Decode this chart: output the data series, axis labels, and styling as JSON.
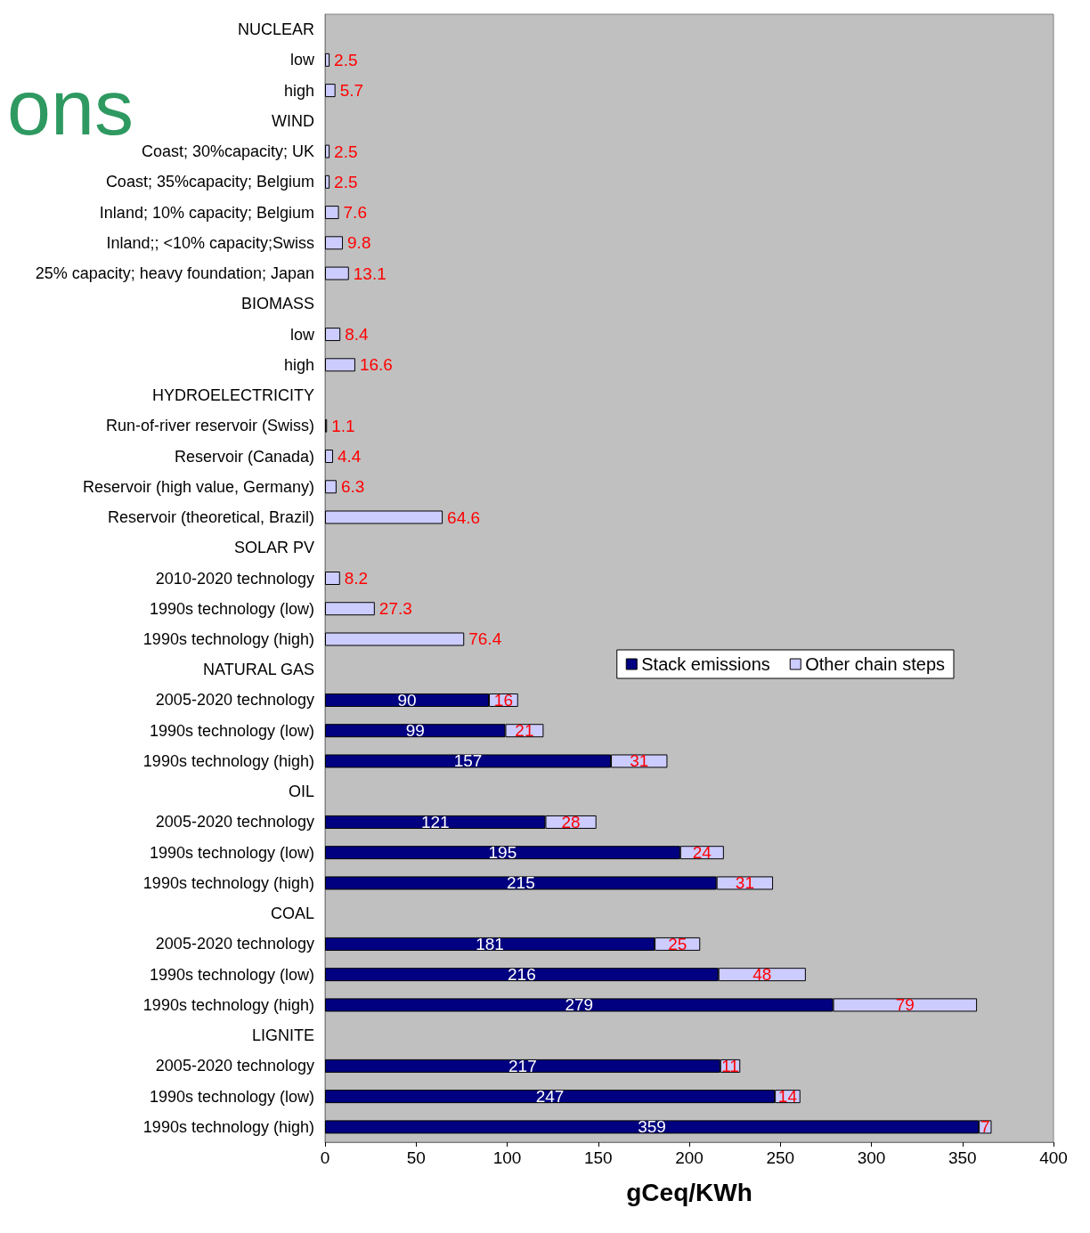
{
  "chart_data": {
    "type": "bar",
    "orientation": "horizontal",
    "stacked": true,
    "xlabel": "gCeq/KWh",
    "annotations": [
      "ons"
    ],
    "categories": [
      "NUCLEAR",
      "low",
      "high",
      "WIND",
      "Coast; 30%capacity; UK",
      "Coast; 35%capacity; Belgium",
      "Inland; 10% capacity; Belgium",
      "Inland;; <10% capacity;Swiss",
      "25% capacity; heavy foundation; Japan",
      "BIOMASS",
      "low",
      "high",
      "HYDROELECTRICITY",
      "Run-of-river reservoir (Swiss)",
      "Reservoir (Canada)",
      "Reservoir (high value, Germany)",
      "Reservoir (theoretical, Brazil)",
      "SOLAR PV",
      "2010-2020 technology",
      "1990s technology (low)",
      "1990s technology (high)",
      "NATURAL GAS",
      "2005-2020 technology",
      "1990s technology (low)",
      "1990s technology (high)",
      "OIL",
      "2005-2020 technology",
      "1990s technology (low)",
      "1990s technology (high)",
      "COAL",
      "2005-2020 technology",
      "1990s technology (low)",
      "1990s technology (high)",
      "LIGNITE",
      "2005-2020 technology",
      "1990s technology (low)",
      "1990s technology (high)"
    ],
    "series": [
      {
        "name": "Stack emissions",
        "color": "#000080",
        "values": [
          null,
          null,
          null,
          null,
          null,
          null,
          null,
          null,
          null,
          null,
          null,
          null,
          null,
          null,
          null,
          null,
          null,
          null,
          null,
          null,
          null,
          null,
          90,
          99,
          157,
          null,
          121,
          195,
          215,
          null,
          181,
          216,
          279,
          null,
          217,
          247,
          359
        ]
      },
      {
        "name": "Other chain steps",
        "color": "#ccccff",
        "values": [
          null,
          2.5,
          5.7,
          null,
          2.5,
          2.5,
          7.6,
          9.8,
          13.1,
          null,
          8.4,
          16.6,
          null,
          1.1,
          4.4,
          6.3,
          64.6,
          null,
          8.2,
          27.3,
          76.4,
          null,
          16,
          21,
          31,
          null,
          28,
          24,
          31,
          null,
          25,
          48,
          79,
          null,
          11,
          14,
          7
        ]
      }
    ],
    "xlim": [
      0,
      400
    ],
    "xticks": [
      0,
      50,
      100,
      150,
      200,
      250,
      300,
      350,
      400
    ],
    "grid": false,
    "legend": "right",
    "data_labels": true
  }
}
